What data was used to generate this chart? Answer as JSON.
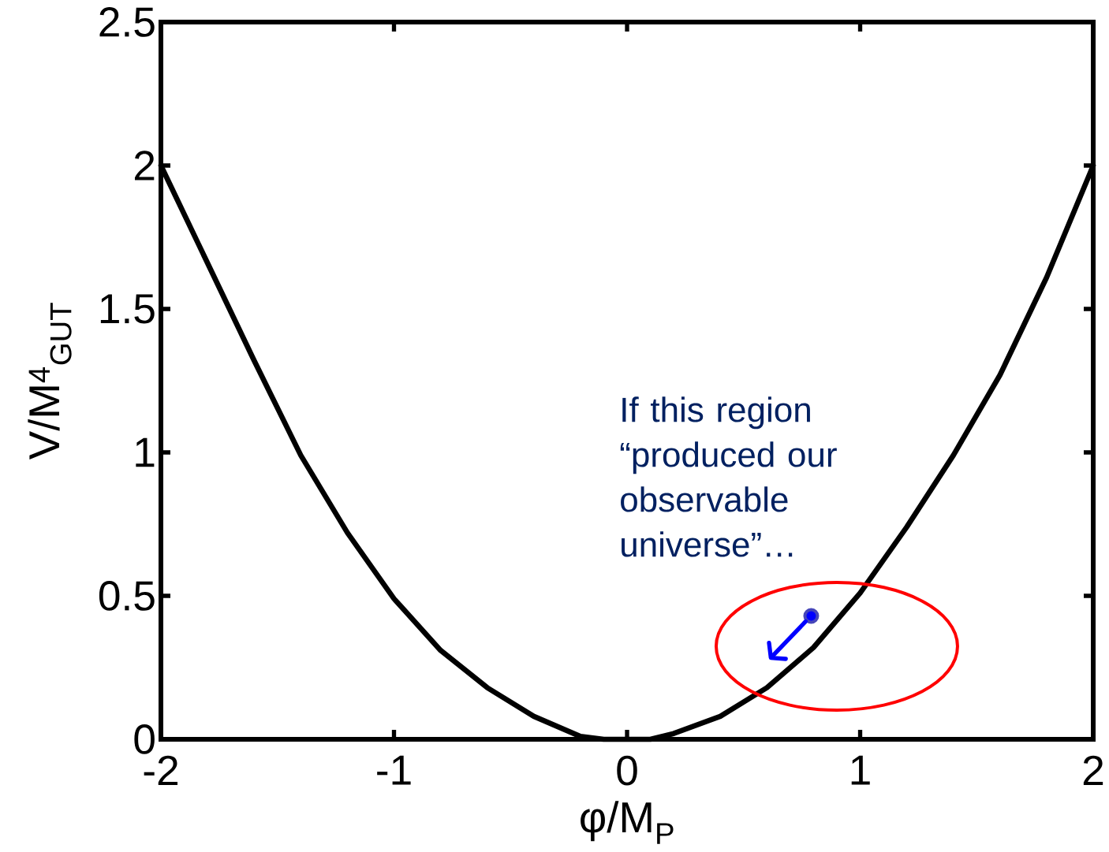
{
  "chart_data": {
    "type": "line",
    "xlabel": "φ/M$_{P}$",
    "ylabel": "V/M$^{4}$$_{GUT}$",
    "xlim": [
      -2,
      2
    ],
    "ylim": [
      0,
      2.5
    ],
    "xticks": [
      -2,
      -1,
      0,
      1,
      2
    ],
    "yticks": [
      0,
      0.5,
      1,
      1.5,
      2,
      2.5
    ],
    "series": [
      {
        "color": "#000000",
        "x": [
          -2,
          -1.8,
          -1.6,
          -1.4,
          -1.2,
          -1,
          -0.8,
          -0.6,
          -0.4,
          -0.2,
          -0.1,
          0,
          0.1,
          0.2,
          0.4,
          0.6,
          0.8,
          1,
          1.2,
          1.4,
          1.6,
          1.8,
          2
        ],
        "values": [
          2.0,
          1.66,
          1.32,
          0.99,
          0.72,
          0.49,
          0.31,
          0.18,
          0.08,
          0.01,
          0.0,
          0.0,
          0.0,
          0.02,
          0.08,
          0.18,
          0.32,
          0.51,
          0.74,
          0.99,
          1.27,
          1.61,
          2.0
        ]
      },
      {
        "type": "scatter",
        "color": "#0000ff",
        "x": [
          0.79
        ],
        "values": [
          0.43
        ]
      }
    ],
    "annotations": [
      "If this region “produced our observable universe”…"
    ]
  }
}
